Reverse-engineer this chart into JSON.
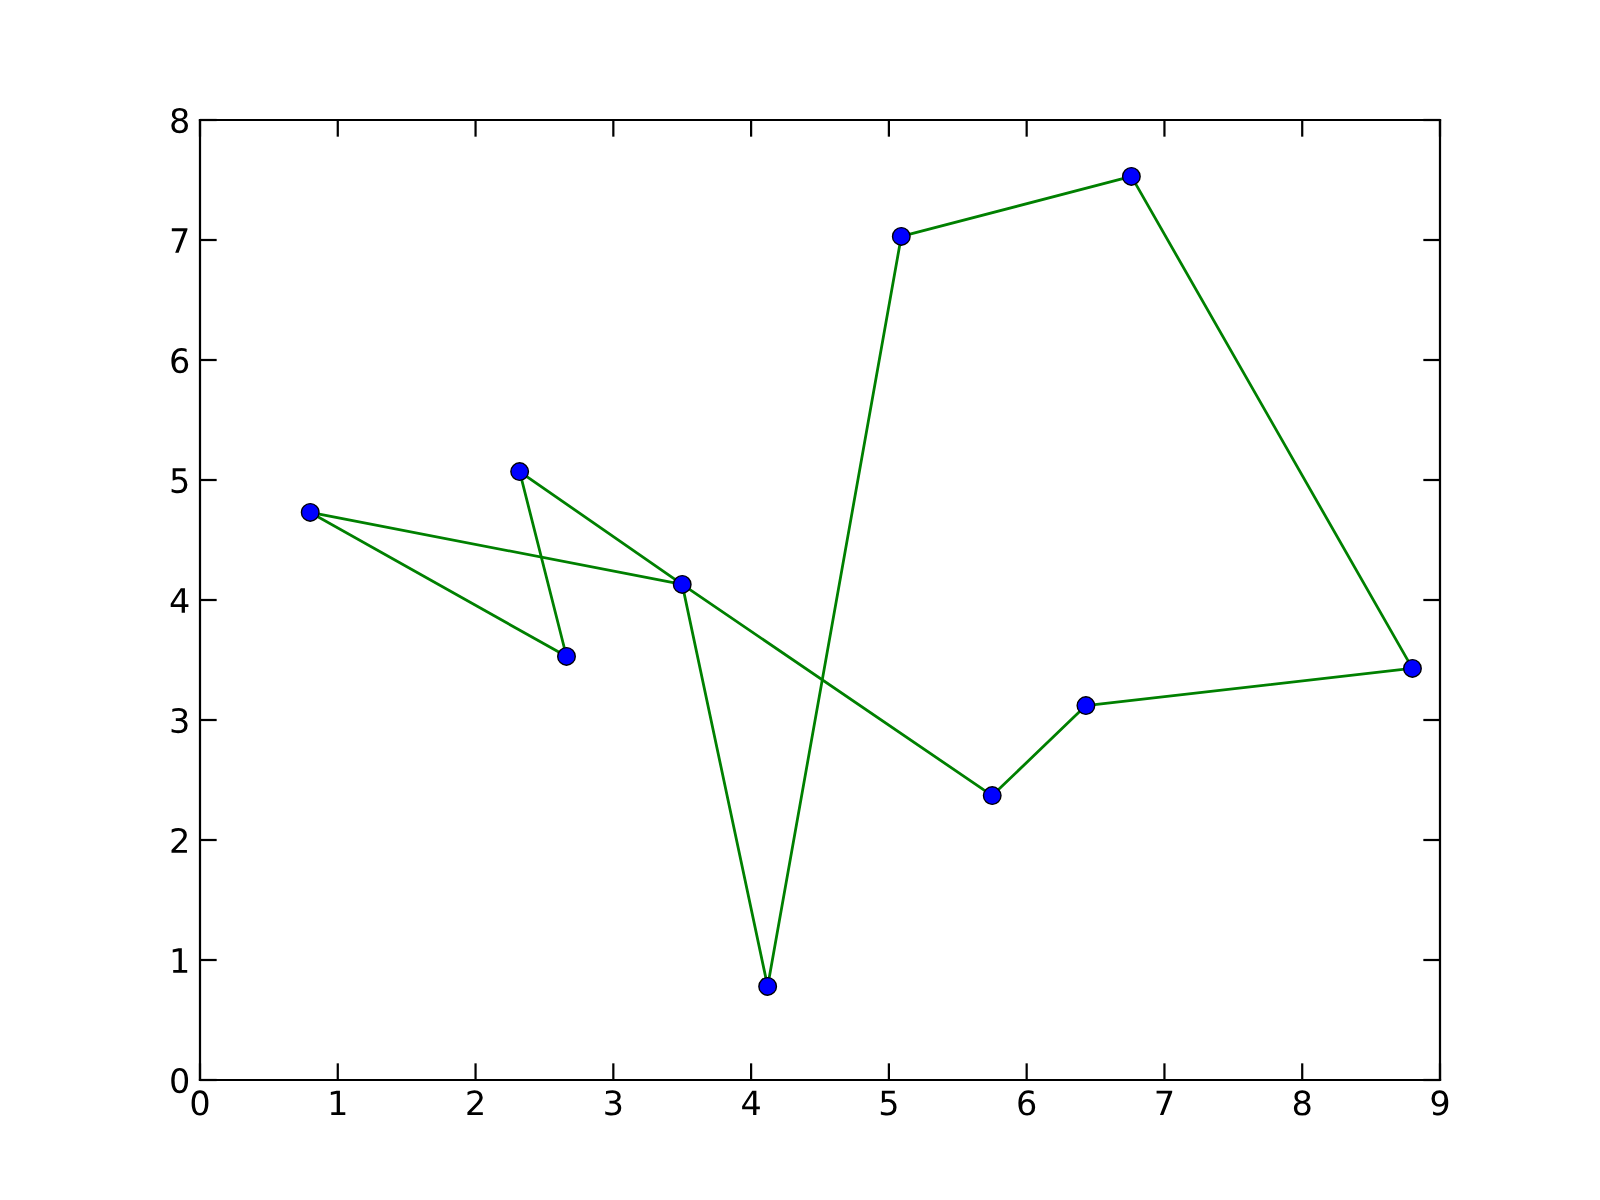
{
  "chart_data": {
    "type": "line",
    "xlim": [
      0,
      9
    ],
    "ylim": [
      0,
      8
    ],
    "xticks": [
      0,
      1,
      2,
      3,
      4,
      5,
      6,
      7,
      8,
      9
    ],
    "yticks": [
      0,
      1,
      2,
      3,
      4,
      5,
      6,
      7,
      8
    ],
    "grid": false,
    "legend": false,
    "series": [
      {
        "color": "#008000",
        "marker": "none",
        "x": [
          0.8,
          3.5,
          4.12,
          5.09,
          6.76,
          8.8
        ],
        "values": [
          4.73,
          4.13,
          0.78,
          7.03,
          7.53,
          3.43
        ]
      },
      {
        "color": "#008000",
        "marker": "none",
        "x": [
          2.32,
          3.5,
          5.75,
          6.43,
          8.8
        ],
        "values": [
          5.07,
          4.13,
          2.37,
          3.12,
          3.43
        ]
      },
      {
        "color": "#008000",
        "marker": "none",
        "x": [
          0.8,
          2.66
        ],
        "values": [
          4.73,
          3.53
        ]
      },
      {
        "color": "#008000",
        "marker": "none",
        "x": [
          2.32,
          2.66
        ],
        "values": [
          5.07,
          3.53
        ]
      },
      {
        "type": "scatter",
        "color": "#0000ff",
        "marker": "circle",
        "x": [
          0.8,
          2.66,
          2.32,
          3.5,
          5.75,
          6.43,
          8.8,
          6.76,
          5.09,
          4.12
        ],
        "values": [
          4.73,
          3.53,
          5.07,
          4.13,
          2.37,
          3.12,
          3.43,
          7.53,
          7.03,
          0.78
        ]
      }
    ]
  }
}
